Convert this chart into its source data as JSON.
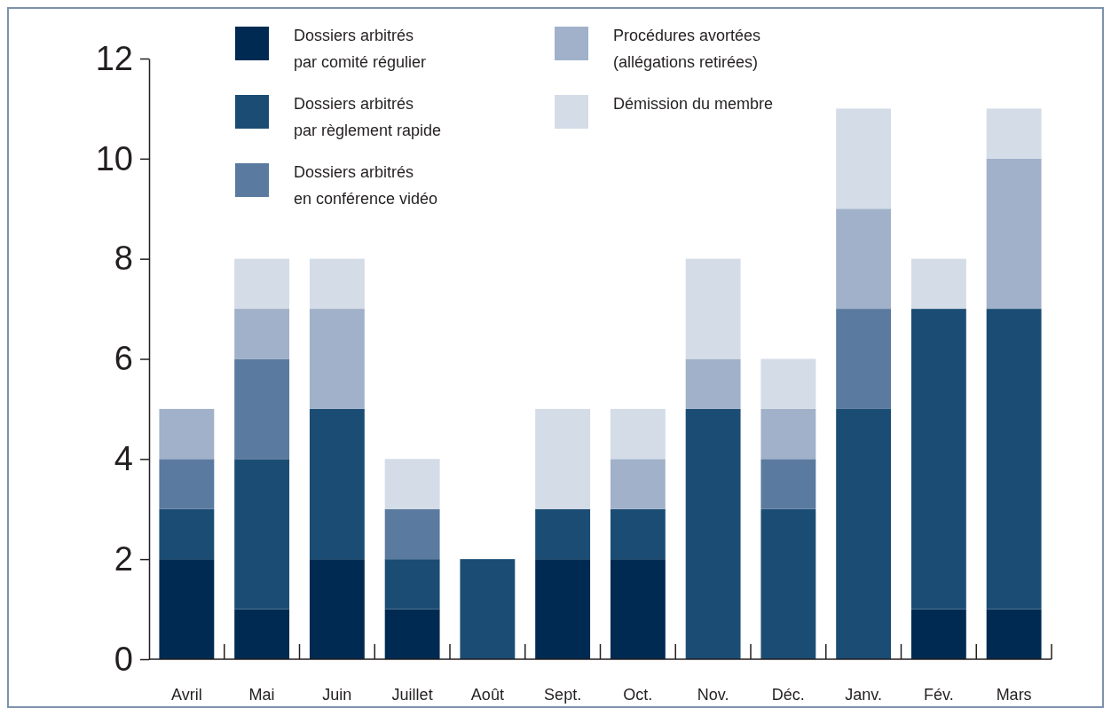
{
  "chart_data": {
    "type": "bar",
    "stacked": true,
    "categories": [
      "Avril",
      "Mai",
      "Juin",
      "Juillet",
      "Août",
      "Sept.",
      "Oct.",
      "Nov.",
      "Déc.",
      "Janv.",
      "Fév.",
      "Mars"
    ],
    "series": [
      {
        "name": "Dossiers arbitrés\npar comité régulier",
        "color": "#012a52",
        "values": [
          2,
          1,
          2,
          1,
          0,
          2,
          2,
          0,
          0,
          0,
          1,
          1
        ]
      },
      {
        "name": "Dossiers arbitrés\npar règlement rapide",
        "color": "#1b4d74",
        "values": [
          1,
          3,
          3,
          1,
          2,
          1,
          1,
          5,
          3,
          5,
          6,
          6
        ]
      },
      {
        "name": "Dossiers arbitrés\nen conférence vidéo",
        "color": "#5a7a9f",
        "values": [
          1,
          2,
          0,
          1,
          0,
          0,
          0,
          0,
          1,
          2,
          0,
          0
        ]
      },
      {
        "name": "Procédures avortées\n(allégations retirées)",
        "color": "#a0b1c9",
        "values": [
          1,
          1,
          2,
          0,
          0,
          0,
          1,
          1,
          1,
          2,
          0,
          3
        ]
      },
      {
        "name": "Démission du membre",
        "color": "#d3dce7",
        "values": [
          0,
          1,
          1,
          1,
          0,
          2,
          1,
          2,
          1,
          2,
          1,
          1
        ]
      }
    ],
    "ylim": [
      0,
      12
    ],
    "yticks": [
      0,
      2,
      4,
      6,
      8,
      10,
      12
    ],
    "legend": "top"
  }
}
